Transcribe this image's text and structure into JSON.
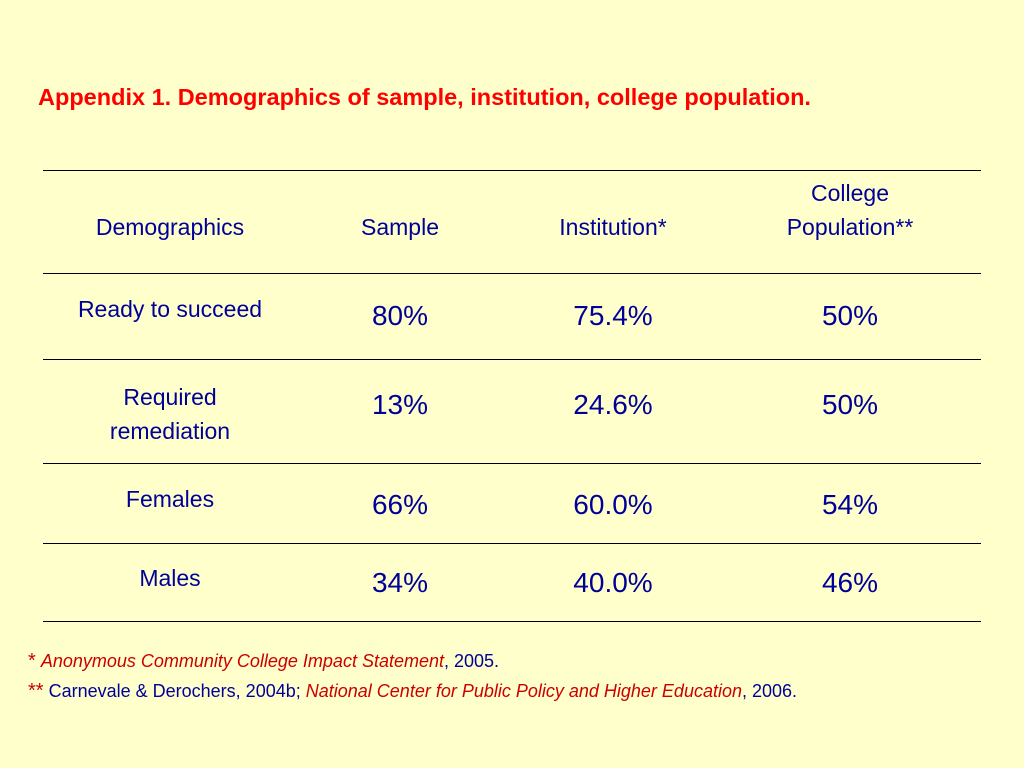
{
  "title": "Appendix 1. Demographics of sample, institution, college population.",
  "table": {
    "headers": {
      "demographics": "Demographics",
      "sample": "Sample",
      "institution": "Institution*",
      "college_line1": "College",
      "college_line2": "Population**"
    },
    "rows": [
      {
        "label_line1": "Ready to succeed",
        "label_line2": "",
        "sample": "80%",
        "institution": "75.4%",
        "college": "50%"
      },
      {
        "label_line1": "Required",
        "label_line2": "remediation",
        "sample": "13%",
        "institution": "24.6%",
        "college": "50%"
      },
      {
        "label_line1": "Females",
        "label_line2": "",
        "sample": "66%",
        "institution": "60.0%",
        "college": "54%"
      },
      {
        "label_line1": "Males",
        "label_line2": "",
        "sample": "34%",
        "institution": "40.0%",
        "college": "46%"
      }
    ]
  },
  "footnotes": {
    "fn1": {
      "marker": "*",
      "italic_source": "Anonymous Community College Impact Statement",
      "tail": ", 2005."
    },
    "fn2": {
      "marker": "**",
      "lead": "Carnevale & Derochers, 2004b; ",
      "italic_source": "National Center for Public Policy and Higher Education",
      "tail": ", 2006."
    }
  },
  "colors": {
    "background": "#FFFFCC",
    "title": "#FF0000",
    "table_text": "#000099",
    "footnote_italic": "#CC0000",
    "rules": "#000000"
  }
}
